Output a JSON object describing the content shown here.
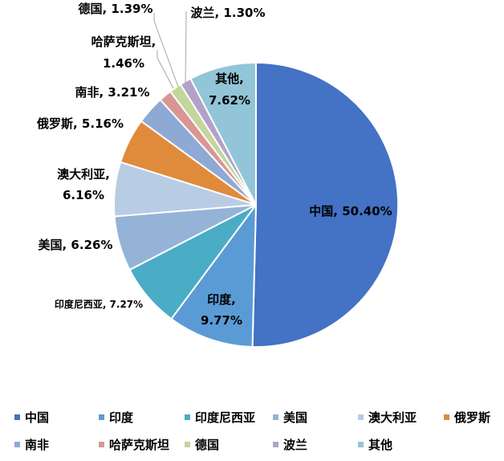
{
  "chart_data": {
    "type": "pie",
    "title": "",
    "start_angle_deg": 0,
    "direction": "clockwise",
    "slices": [
      {
        "name": "中国",
        "value": 50.4,
        "label": "中国, 50.40%",
        "color": "#4472C4"
      },
      {
        "name": "印度",
        "value": 9.77,
        "label": "印度,|9.77%",
        "color": "#5B9BD5"
      },
      {
        "name": "印度尼西亚",
        "value": 7.27,
        "label": "印度尼西亚, 7.27%",
        "color": "#4BACC6"
      },
      {
        "name": "美国",
        "value": 6.26,
        "label": "美国, 6.26%",
        "color": "#95B3D7"
      },
      {
        "name": "澳大利亚",
        "value": 6.16,
        "label": "澳大利亚,|6.16%",
        "color": "#B8CCE4"
      },
      {
        "name": "俄罗斯",
        "value": 5.16,
        "label": "俄罗斯, 5.16%",
        "color": "#E08A3C"
      },
      {
        "name": "南非",
        "value": 3.21,
        "label": "南非, 3.21%",
        "color": "#8EA9D4"
      },
      {
        "name": "哈萨克斯坦",
        "value": 1.46,
        "label": "哈萨克斯坦,|1.46%",
        "color": "#D99694"
      },
      {
        "name": "德国",
        "value": 1.39,
        "label": "德国, 1.39%",
        "color": "#C3D69B"
      },
      {
        "name": "波兰",
        "value": 1.3,
        "label": "波兰, 1.30%",
        "color": "#B3A2C7"
      },
      {
        "name": "其他",
        "value": 7.62,
        "label": "其他,|7.62%",
        "color": "#92C5D8"
      }
    ],
    "legend_position": "bottom"
  }
}
